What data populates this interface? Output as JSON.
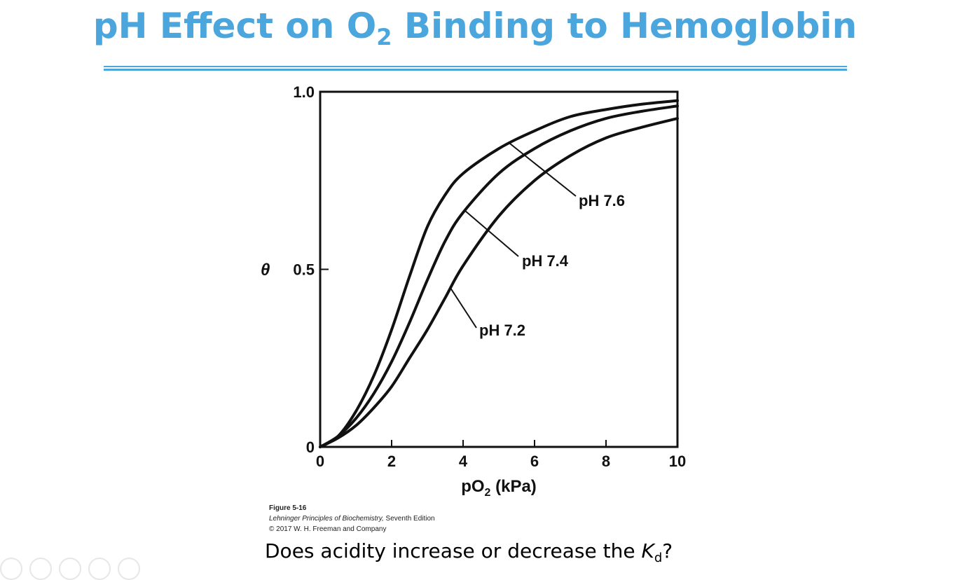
{
  "slide": {
    "title_main": "pH Effect on O",
    "title_sub": "2",
    "title_rest": " Binding to Hemoglobin",
    "credit_figure": "Figure 5-16",
    "credit_book": "Lehninger Principles of Biochemistry,",
    "credit_edition": " Seventh Edition",
    "credit_copyright": "© 2017 W. H. Freeman and Company",
    "question_start": "Does acidity increase or decrease the ",
    "question_k": "K",
    "question_sub": "d",
    "question_end": "?"
  },
  "colors": {
    "title": "#4aa6dc",
    "curve": "#111111"
  },
  "chart_data": {
    "type": "line",
    "x_label_start": "pO",
    "x_label_sub": "2",
    "x_label_end": " (kPa)",
    "y_label": "θ",
    "xlim": [
      0,
      10
    ],
    "ylim": [
      0,
      1.0
    ],
    "x_ticks": [
      0,
      2,
      4,
      6,
      8,
      10
    ],
    "x_tick_labels": [
      "0",
      "2",
      "4",
      "6",
      "8",
      "10"
    ],
    "y_ticks": [
      0,
      0.5,
      1.0
    ],
    "y_tick_labels": [
      "0",
      "0.5",
      "1.0"
    ],
    "grid": false,
    "series": [
      {
        "name": "pH 7.6",
        "x": [
          0,
          0.5,
          1,
          1.5,
          2,
          2.5,
          3,
          3.5,
          4,
          5,
          6,
          7,
          8,
          9,
          10
        ],
        "y": [
          0,
          0.03,
          0.1,
          0.2,
          0.33,
          0.48,
          0.62,
          0.71,
          0.77,
          0.84,
          0.89,
          0.93,
          0.95,
          0.965,
          0.975
        ]
      },
      {
        "name": "pH 7.4",
        "x": [
          0,
          0.5,
          1,
          1.5,
          2,
          2.5,
          3,
          3.5,
          4,
          5,
          6,
          7,
          8,
          9,
          10
        ],
        "y": [
          0,
          0.03,
          0.08,
          0.15,
          0.24,
          0.35,
          0.47,
          0.58,
          0.66,
          0.77,
          0.84,
          0.89,
          0.925,
          0.945,
          0.96
        ]
      },
      {
        "name": "pH 7.2",
        "x": [
          0,
          0.5,
          1,
          1.5,
          2,
          2.5,
          3,
          3.5,
          4,
          5,
          6,
          7,
          8,
          9,
          10
        ],
        "y": [
          0,
          0.025,
          0.06,
          0.11,
          0.17,
          0.25,
          0.33,
          0.42,
          0.51,
          0.65,
          0.75,
          0.82,
          0.87,
          0.9,
          0.925
        ]
      }
    ]
  }
}
